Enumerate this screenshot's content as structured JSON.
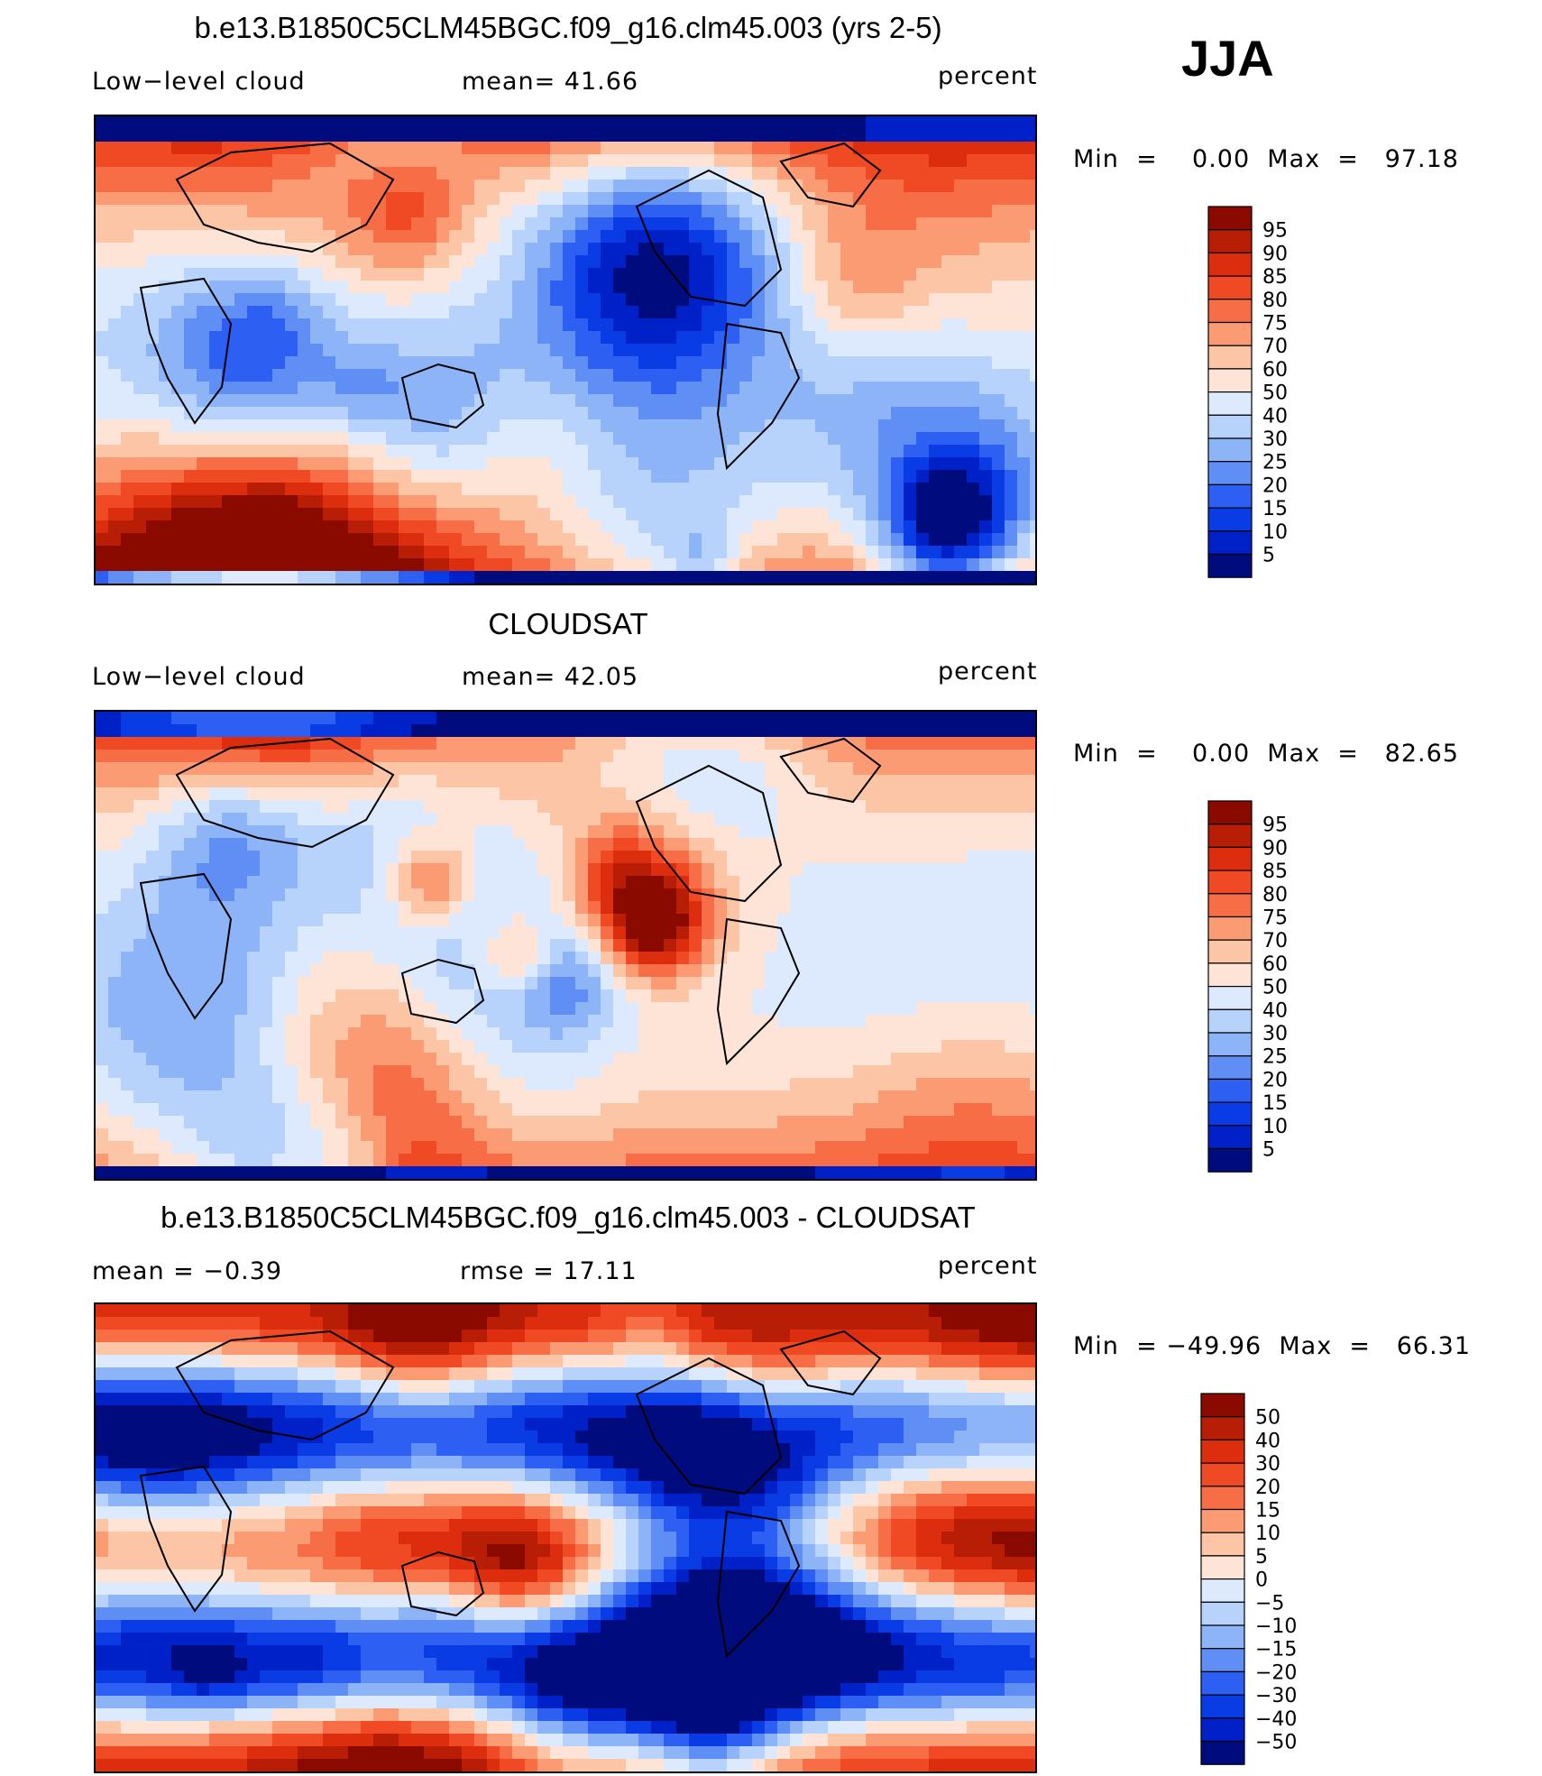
{
  "season": "JJA",
  "palette_colors": {
    "seq": [
      "#000c7d",
      "#0020c8",
      "#0a3ce6",
      "#2c5ff2",
      "#5f8ff5",
      "#8cb4f7",
      "#b8d3fb",
      "#dde9fd",
      "#fde4d6",
      "#fcc6a6",
      "#fa9b73",
      "#f76d45",
      "#f04a24",
      "#dc2d0f",
      "#b81d05",
      "#8b0a00"
    ],
    "diff": [
      "#000c7d",
      "#0020c8",
      "#0a3ce6",
      "#2c5ff2",
      "#5f8ff5",
      "#8cb4f7",
      "#b8d3fb",
      "#dde9fd",
      "#fde4d6",
      "#fcc6a6",
      "#fa9b73",
      "#f76d45",
      "#f04a24",
      "#dc2d0f",
      "#b81d05",
      "#8b0a00"
    ]
  },
  "panels": [
    {
      "id": "model",
      "title": "b.e13.B1850C5CLM45BGC.f09_g16.clm45.003 (yrs 2-5)",
      "left_label": "Low−level  cloud",
      "center_label": "mean=   41.66",
      "units": "percent",
      "minmax": "Min  =    0.00  Max  =   97.18",
      "colorbar_labels": [
        "95",
        "90",
        "85",
        "80",
        "75",
        "70",
        "60",
        "50",
        "40",
        "30",
        "25",
        "20",
        "15",
        "10",
        "5"
      ],
      "field_seed": 3
    },
    {
      "id": "obs",
      "title": "CLOUDSAT",
      "left_label": "Low−level  cloud",
      "center_label": "mean=   42.05",
      "units": "percent",
      "minmax": "Min  =    0.00  Max  =   82.65",
      "colorbar_labels": [
        "95",
        "90",
        "85",
        "80",
        "75",
        "70",
        "60",
        "50",
        "40",
        "30",
        "25",
        "20",
        "15",
        "10",
        "5"
      ],
      "field_seed": 7
    },
    {
      "id": "diff",
      "title": "b.e13.B1850C5CLM45BGC.f09_g16.clm45.003 - CLOUDSAT",
      "left_label": "mean  =    −0.39",
      "center_label": "rmse  =    17.11",
      "units": "percent",
      "minmax": "Min  = −49.96  Max  =   66.31",
      "colorbar_labels": [
        "50",
        "40",
        "30",
        "20",
        "15",
        "10",
        "5",
        "0",
        "−5",
        "−10",
        "−15",
        "−20",
        "−30",
        "−40",
        "−50"
      ],
      "field_seed": 11
    }
  ]
}
